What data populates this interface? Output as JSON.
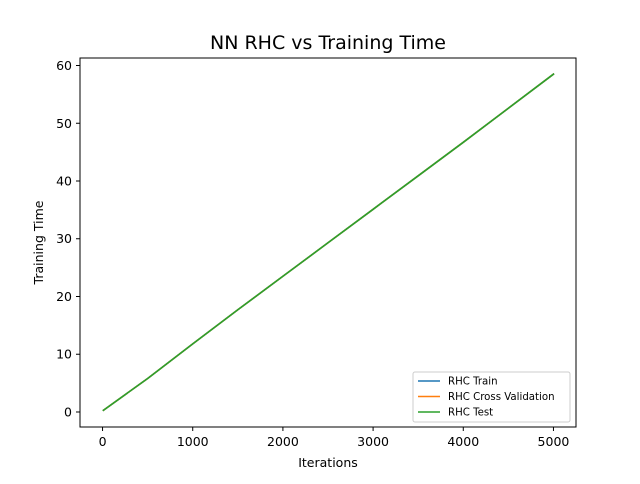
{
  "chart_data": {
    "type": "line",
    "title": "NN RHC vs Training Time",
    "xlabel": "Iterations",
    "ylabel": "Training Time",
    "xlim": [
      -250,
      5250
    ],
    "ylim": [
      -2.6,
      61.3
    ],
    "xticks": [
      0,
      1000,
      2000,
      3000,
      4000,
      5000
    ],
    "yticks": [
      0,
      10,
      20,
      30,
      40,
      50,
      60
    ],
    "grid": false,
    "legend_position": "lower-right",
    "series": [
      {
        "name": "RHC Train",
        "color": "#1f77b4",
        "x": [
          10,
          500,
          1000,
          1500,
          2000,
          2500,
          3000,
          3500,
          4000,
          4500,
          5000
        ],
        "y": [
          0.3,
          5.8,
          11.8,
          17.7,
          23.5,
          29.3,
          35.1,
          40.9,
          46.7,
          52.6,
          58.5
        ]
      },
      {
        "name": "RHC Cross Validation",
        "color": "#ff7f0e",
        "x": [
          10,
          500,
          1000,
          1500,
          2000,
          2500,
          3000,
          3500,
          4000,
          4500,
          5000
        ],
        "y": [
          0.3,
          5.8,
          11.8,
          17.7,
          23.5,
          29.3,
          35.1,
          40.9,
          46.7,
          52.6,
          58.5
        ]
      },
      {
        "name": "RHC Test",
        "color": "#2ca02c",
        "x": [
          10,
          500,
          1000,
          1500,
          2000,
          2500,
          3000,
          3500,
          4000,
          4500,
          5000
        ],
        "y": [
          0.3,
          5.8,
          11.8,
          17.7,
          23.5,
          29.3,
          35.1,
          40.9,
          46.7,
          52.6,
          58.5
        ]
      }
    ]
  }
}
